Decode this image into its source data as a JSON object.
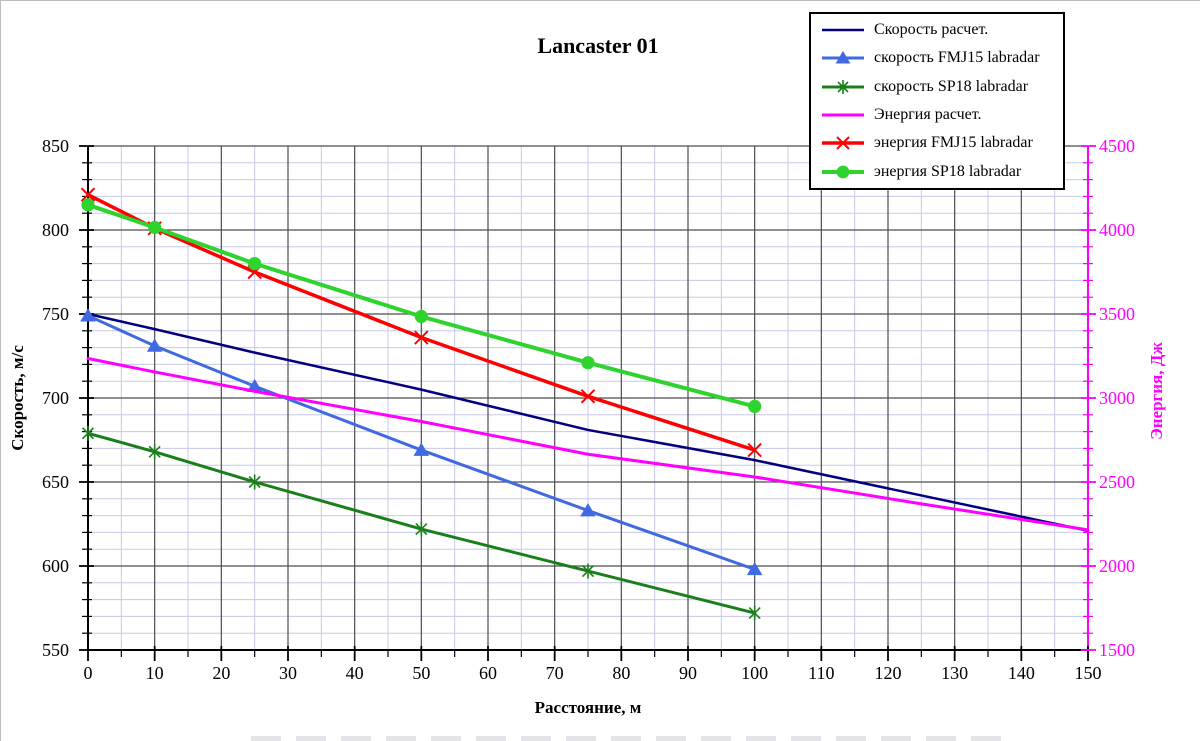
{
  "chart_data": {
    "type": "line",
    "title": "Lancaster 01",
    "x_axis": {
      "label": "Расстояние, м",
      "min": 0,
      "max": 150,
      "major_tick": 10,
      "minor_tick": 5,
      "tick_labels": [
        "0",
        "10",
        "20",
        "30",
        "40",
        "50",
        "60",
        "70",
        "80",
        "90",
        "100",
        "110",
        "120",
        "130",
        "140",
        "150"
      ]
    },
    "y_axis_left": {
      "label": "Скорость, м/с",
      "min": 550,
      "max": 850,
      "major_tick": 50,
      "minor_tick": 10,
      "tick_labels": [
        "850",
        "800",
        "750",
        "700",
        "650",
        "600",
        "550"
      ],
      "color": "#000000"
    },
    "y_axis_right": {
      "label": "Энергия, Дж",
      "min": 1500,
      "max": 4500,
      "major_tick": 500,
      "minor_tick": 100,
      "tick_labels": [
        "4500",
        "4000",
        "3500",
        "3000",
        "2500",
        "2000",
        "1500"
      ],
      "color": "#ff00ff"
    },
    "grid": {
      "visible": true,
      "major_color": "#4d4d4d",
      "minor_color": "#c8c8ea"
    },
    "legend": {
      "position": "top-right",
      "border_color": "#000000",
      "background": "#ffffff"
    },
    "series": [
      {
        "name": "Скорость расчет.",
        "axis": "left",
        "color": "#000080",
        "marker": "none",
        "line_width": 2.5,
        "x": [
          0,
          10,
          25,
          50,
          75,
          100,
          125,
          150
        ],
        "values": [
          750,
          741,
          727,
          705,
          681,
          663,
          642,
          621
        ]
      },
      {
        "name": "скорость FMJ15 labradar",
        "axis": "left",
        "color": "#4169e1",
        "marker": "triangle",
        "line_width": 3,
        "x": [
          0,
          10,
          25,
          50,
          75,
          100
        ],
        "values": [
          749,
          731,
          707,
          669,
          633,
          598
        ]
      },
      {
        "name": "скорость SP18 labradar",
        "axis": "left",
        "color": "#1a7f1a",
        "marker": "asterisk",
        "line_width": 3,
        "x": [
          0,
          10,
          25,
          50,
          75,
          100
        ],
        "values": [
          679,
          668,
          650,
          622,
          597,
          572
        ]
      },
      {
        "name": "Энергия расчет.",
        "axis": "right",
        "color": "#ff00ff",
        "marker": "none",
        "line_width": 3,
        "x": [
          0,
          10,
          25,
          50,
          75,
          100,
          125,
          150
        ],
        "values": [
          3235,
          3155,
          3040,
          2860,
          2665,
          2530,
          2370,
          2215
        ]
      },
      {
        "name": "энергия FMJ15 labradar",
        "axis": "right",
        "color": "#ff0000",
        "marker": "x",
        "line_width": 3.5,
        "x": [
          0,
          10,
          25,
          50,
          75,
          100
        ],
        "values": [
          4210,
          4010,
          3750,
          3360,
          3010,
          2690
        ]
      },
      {
        "name": "энергия SP18 labradar",
        "axis": "right",
        "color": "#2ed32e",
        "marker": "circle",
        "line_width": 4,
        "x": [
          0,
          10,
          25,
          50,
          75,
          100
        ],
        "values": [
          4150,
          4015,
          3800,
          3485,
          3210,
          2950
        ]
      }
    ]
  }
}
